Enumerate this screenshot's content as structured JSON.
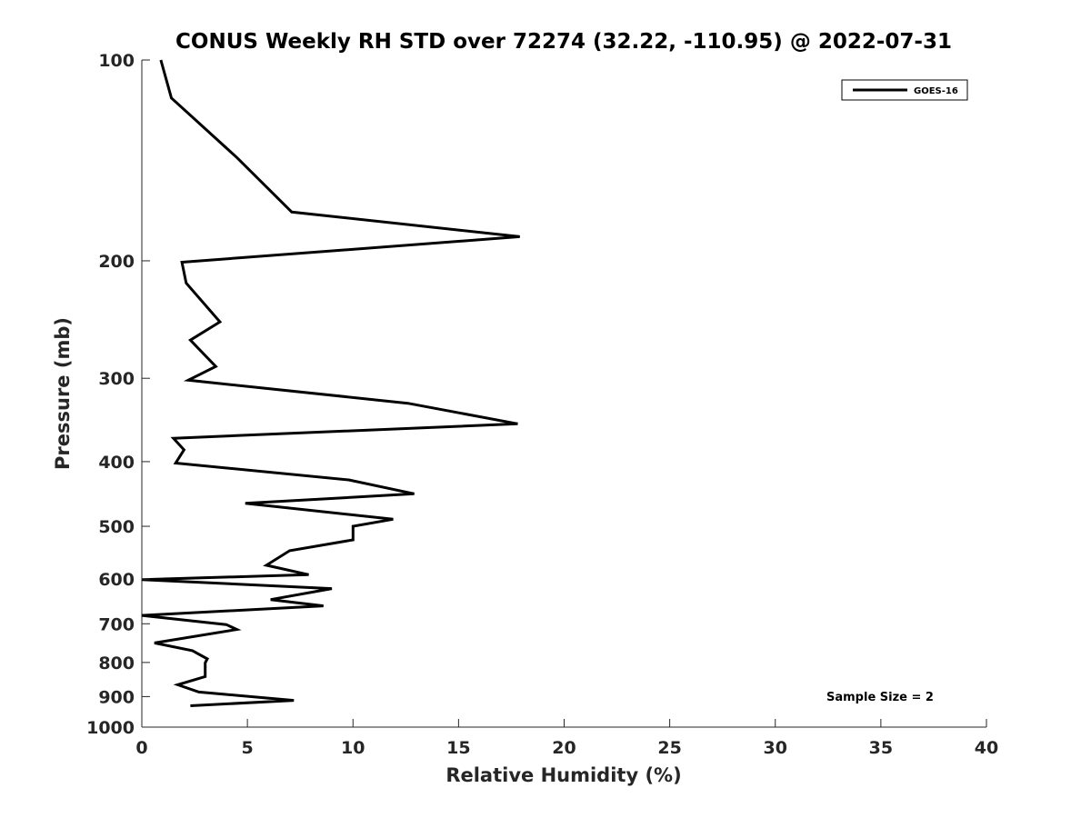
{
  "chart_data": {
    "type": "line",
    "title": "CONUS Weekly RH STD over 72274 (32.22, -110.95) @ 2022-07-31",
    "xlabel": "Relative Humidity (%)",
    "ylabel": "Pressure (mb)",
    "xlim": [
      0,
      40
    ],
    "ylim": [
      100,
      1000
    ],
    "yscale": "log",
    "xticks": [
      "0",
      "5",
      "10",
      "15",
      "20",
      "25",
      "30",
      "35",
      "40"
    ],
    "yticks": [
      "100",
      "200",
      "300",
      "400",
      "500",
      "600",
      "700",
      "800",
      "900",
      "1000"
    ],
    "legend_position": "top-right",
    "annotation": "Sample Size = 2",
    "series": [
      {
        "name": "GOES-16",
        "color": "#000000",
        "x": [
          0.9,
          1.4,
          4.5,
          7.1,
          17.9,
          1.9,
          2.1,
          3.7,
          2.3,
          3.5,
          2.2,
          12.6,
          17.8,
          1.5,
          2.0,
          1.6,
          9.8,
          12.9,
          4.9,
          11.9,
          10.0,
          10.0,
          7.0,
          5.9,
          7.9,
          0.0,
          9.0,
          6.1,
          8.6,
          0.0,
          4.0,
          4.5,
          0.6,
          2.4,
          3.1,
          3.0,
          3.0,
          1.7,
          2.7,
          7.2,
          2.3
        ],
        "y": [
          100,
          114,
          140,
          169,
          184,
          201,
          216,
          247,
          263,
          288,
          302,
          327,
          351,
          369,
          384,
          402,
          426,
          447,
          462,
          488,
          500,
          524,
          544,
          572,
          591,
          601,
          620,
          644,
          658,
          680,
          702,
          714,
          748,
          768,
          790,
          801,
          840,
          864,
          886,
          912,
          929
        ]
      }
    ]
  }
}
